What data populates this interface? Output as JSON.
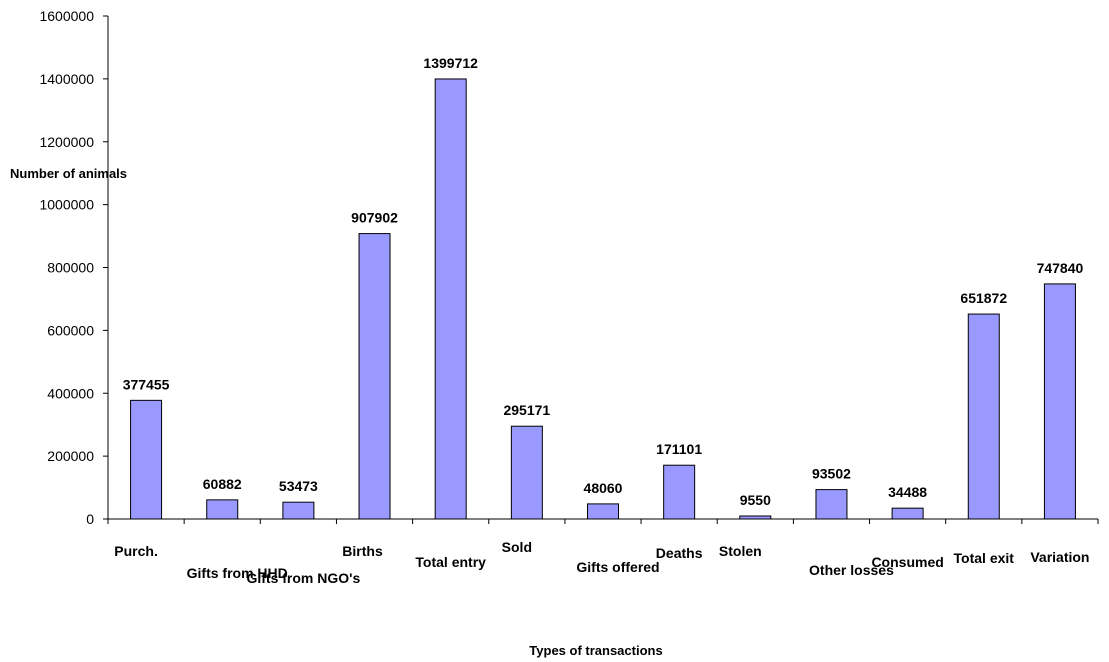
{
  "chart_data": {
    "type": "bar",
    "title": "",
    "xlabel": "Types of transactions",
    "ylabel": "Number of animals",
    "ylim": [
      0,
      1600000
    ],
    "yticks": [
      0,
      200000,
      400000,
      600000,
      800000,
      1000000,
      1200000,
      1400000,
      1600000
    ],
    "grid": false,
    "legend": "none",
    "bar_color": "#9999ff",
    "bar_edge_color": "#000000",
    "categories": [
      "Purch.",
      "Gifts from HHD",
      "Gifts from NGO's",
      "Births",
      "Total entry",
      "Sold",
      "Gifts offered",
      "Deaths",
      "Stolen",
      "Other losses",
      "Consumed",
      "Total exit",
      "Variation"
    ],
    "values": [
      377455,
      60882,
      53473,
      907902,
      1399712,
      295171,
      48060,
      171101,
      9550,
      93502,
      34488,
      651872,
      747840
    ],
    "data_labels": [
      "377455",
      "60882",
      "53473",
      "907902",
      "1399712",
      "295171",
      "48060",
      "171101",
      "9550",
      "93502",
      "34488",
      "651872",
      "747840"
    ]
  }
}
